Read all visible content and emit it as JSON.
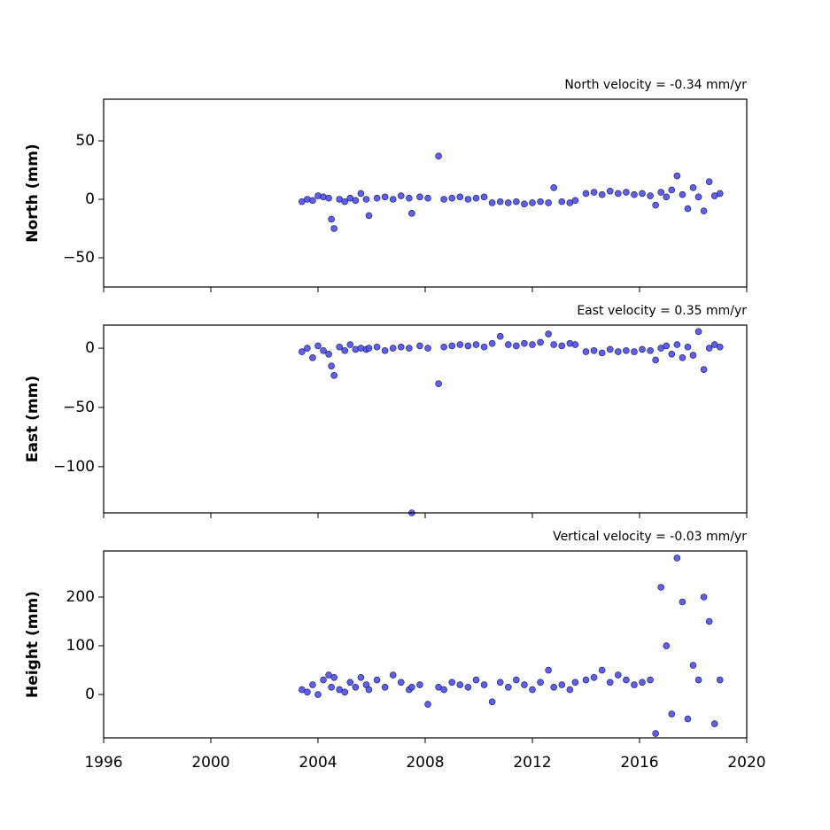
{
  "chart_data": [
    {
      "type": "scatter",
      "title": "North velocity = -0.34 mm/yr",
      "y_label": "North (mm)",
      "color": "#4d4df5",
      "x": [
        2003.4,
        2003.6,
        2003.8,
        2004.0,
        2004.2,
        2004.4,
        2004.5,
        2004.6,
        2004.8,
        2005.0,
        2005.2,
        2005.4,
        2005.6,
        2005.8,
        2005.9,
        2006.2,
        2006.5,
        2006.8,
        2007.1,
        2007.4,
        2007.5,
        2007.8,
        2008.1,
        2008.5,
        2008.7,
        2009.0,
        2009.3,
        2009.6,
        2009.9,
        2010.2,
        2010.5,
        2010.8,
        2011.1,
        2011.4,
        2011.7,
        2012.0,
        2012.3,
        2012.6,
        2012.8,
        2013.1,
        2013.4,
        2013.6,
        2014.0,
        2014.3,
        2014.6,
        2014.9,
        2015.2,
        2015.5,
        2015.8,
        2016.1,
        2016.4,
        2016.6,
        2016.8,
        2017.0,
        2017.2,
        2017.4,
        2017.6,
        2017.8,
        2018.0,
        2018.2,
        2018.4,
        2018.6,
        2018.8,
        2019.0
      ],
      "values": [
        -2,
        0,
        -1,
        3,
        2,
        1,
        -17,
        -25,
        0,
        -2,
        1,
        -1,
        5,
        0,
        -14,
        1,
        2,
        0,
        3,
        1,
        -12,
        2,
        1,
        37,
        0,
        1,
        2,
        0,
        1,
        2,
        -3,
        -2,
        -3,
        -2,
        -4,
        -3,
        -2,
        -3,
        10,
        -2,
        -3,
        -1,
        5,
        6,
        4,
        7,
        5,
        6,
        4,
        5,
        3,
        -5,
        6,
        2,
        8,
        20,
        4,
        -8,
        10,
        2,
        -10,
        15,
        3,
        5
      ],
      "xlim": [
        1996,
        2020
      ],
      "xticks": [
        1996,
        2000,
        2004,
        2008,
        2012,
        2016,
        2020
      ],
      "xticklabels": false,
      "ylim": [
        -75,
        85.6
      ],
      "yticks": [
        {
          "value": -50,
          "label": "−50"
        },
        0,
        50
      ]
    },
    {
      "type": "scatter",
      "title": "East velocity = 0.35 mm/yr",
      "y_label": "East (mm)",
      "color": "#4d4df5",
      "x": [
        2003.4,
        2003.6,
        2003.8,
        2004.0,
        2004.2,
        2004.4,
        2004.5,
        2004.6,
        2004.8,
        2005.0,
        2005.2,
        2005.4,
        2005.6,
        2005.8,
        2005.9,
        2006.2,
        2006.5,
        2006.8,
        2007.1,
        2007.4,
        2007.5,
        2007.8,
        2008.1,
        2008.5,
        2008.7,
        2009.0,
        2009.3,
        2009.6,
        2009.9,
        2010.2,
        2010.5,
        2010.8,
        2011.1,
        2011.4,
        2011.7,
        2012.0,
        2012.3,
        2012.6,
        2012.8,
        2013.1,
        2013.4,
        2013.6,
        2014.0,
        2014.3,
        2014.6,
        2014.9,
        2015.2,
        2015.5,
        2015.8,
        2016.1,
        2016.4,
        2016.6,
        2016.8,
        2017.0,
        2017.2,
        2017.4,
        2017.6,
        2017.8,
        2018.0,
        2018.2,
        2018.4,
        2018.6,
        2018.8,
        2019.0
      ],
      "values": [
        -3,
        0,
        -8,
        2,
        -2,
        -5,
        -15,
        -23,
        1,
        -2,
        3,
        -1,
        0,
        -1,
        0,
        1,
        -2,
        0,
        1,
        0,
        -139,
        2,
        0,
        -30,
        1,
        2,
        3,
        2,
        3,
        1,
        4,
        10,
        3,
        2,
        4,
        3,
        5,
        12,
        3,
        2,
        4,
        3,
        -3,
        -2,
        -4,
        -1,
        -3,
        -2,
        -3,
        -1,
        -2,
        -10,
        0,
        2,
        -5,
        3,
        -8,
        1,
        -6,
        14,
        -18,
        0,
        3,
        1
      ],
      "xlim": [
        1996,
        2020
      ],
      "xticks": [
        1996,
        2000,
        2004,
        2008,
        2012,
        2016,
        2020
      ],
      "xticklabels": false,
      "ylim": [
        -139,
        19.5
      ],
      "yticks": [
        {
          "value": -100,
          "label": "−100"
        },
        {
          "value": -50,
          "label": "−50"
        },
        0
      ]
    },
    {
      "type": "scatter",
      "title": "Vertical velocity = -0.03 mm/yr",
      "y_label": "Height (mm)",
      "color": "#4d4df5",
      "x": [
        2003.4,
        2003.6,
        2003.8,
        2004.0,
        2004.2,
        2004.4,
        2004.5,
        2004.6,
        2004.8,
        2005.0,
        2005.2,
        2005.4,
        2005.6,
        2005.8,
        2005.9,
        2006.2,
        2006.5,
        2006.8,
        2007.1,
        2007.4,
        2007.5,
        2007.8,
        2008.1,
        2008.5,
        2008.7,
        2009.0,
        2009.3,
        2009.6,
        2009.9,
        2010.2,
        2010.5,
        2010.8,
        2011.1,
        2011.4,
        2011.7,
        2012.0,
        2012.3,
        2012.6,
        2012.8,
        2013.1,
        2013.4,
        2013.6,
        2014.0,
        2014.3,
        2014.6,
        2014.9,
        2015.2,
        2015.5,
        2015.8,
        2016.1,
        2016.4,
        2016.6,
        2016.8,
        2017.0,
        2017.2,
        2017.4,
        2017.6,
        2017.8,
        2018.0,
        2018.2,
        2018.4,
        2018.6,
        2018.8,
        2019.0
      ],
      "values": [
        10,
        5,
        20,
        0,
        30,
        40,
        15,
        35,
        10,
        5,
        25,
        15,
        35,
        20,
        10,
        30,
        15,
        40,
        25,
        10,
        15,
        20,
        -20,
        15,
        10,
        25,
        20,
        15,
        30,
        20,
        -15,
        25,
        15,
        30,
        20,
        10,
        25,
        50,
        15,
        20,
        10,
        25,
        30,
        35,
        50,
        25,
        40,
        30,
        20,
        25,
        30,
        -80,
        220,
        100,
        -40,
        280,
        190,
        -50,
        60,
        30,
        200,
        150,
        -60,
        30
      ],
      "xlim": [
        1996,
        2020
      ],
      "xticks": [
        1996,
        2000,
        2004,
        2008,
        2012,
        2016,
        2020
      ],
      "xticklabels": true,
      "ylim": [
        -89,
        294.5
      ],
      "yticks": [
        0,
        100,
        200
      ]
    }
  ]
}
